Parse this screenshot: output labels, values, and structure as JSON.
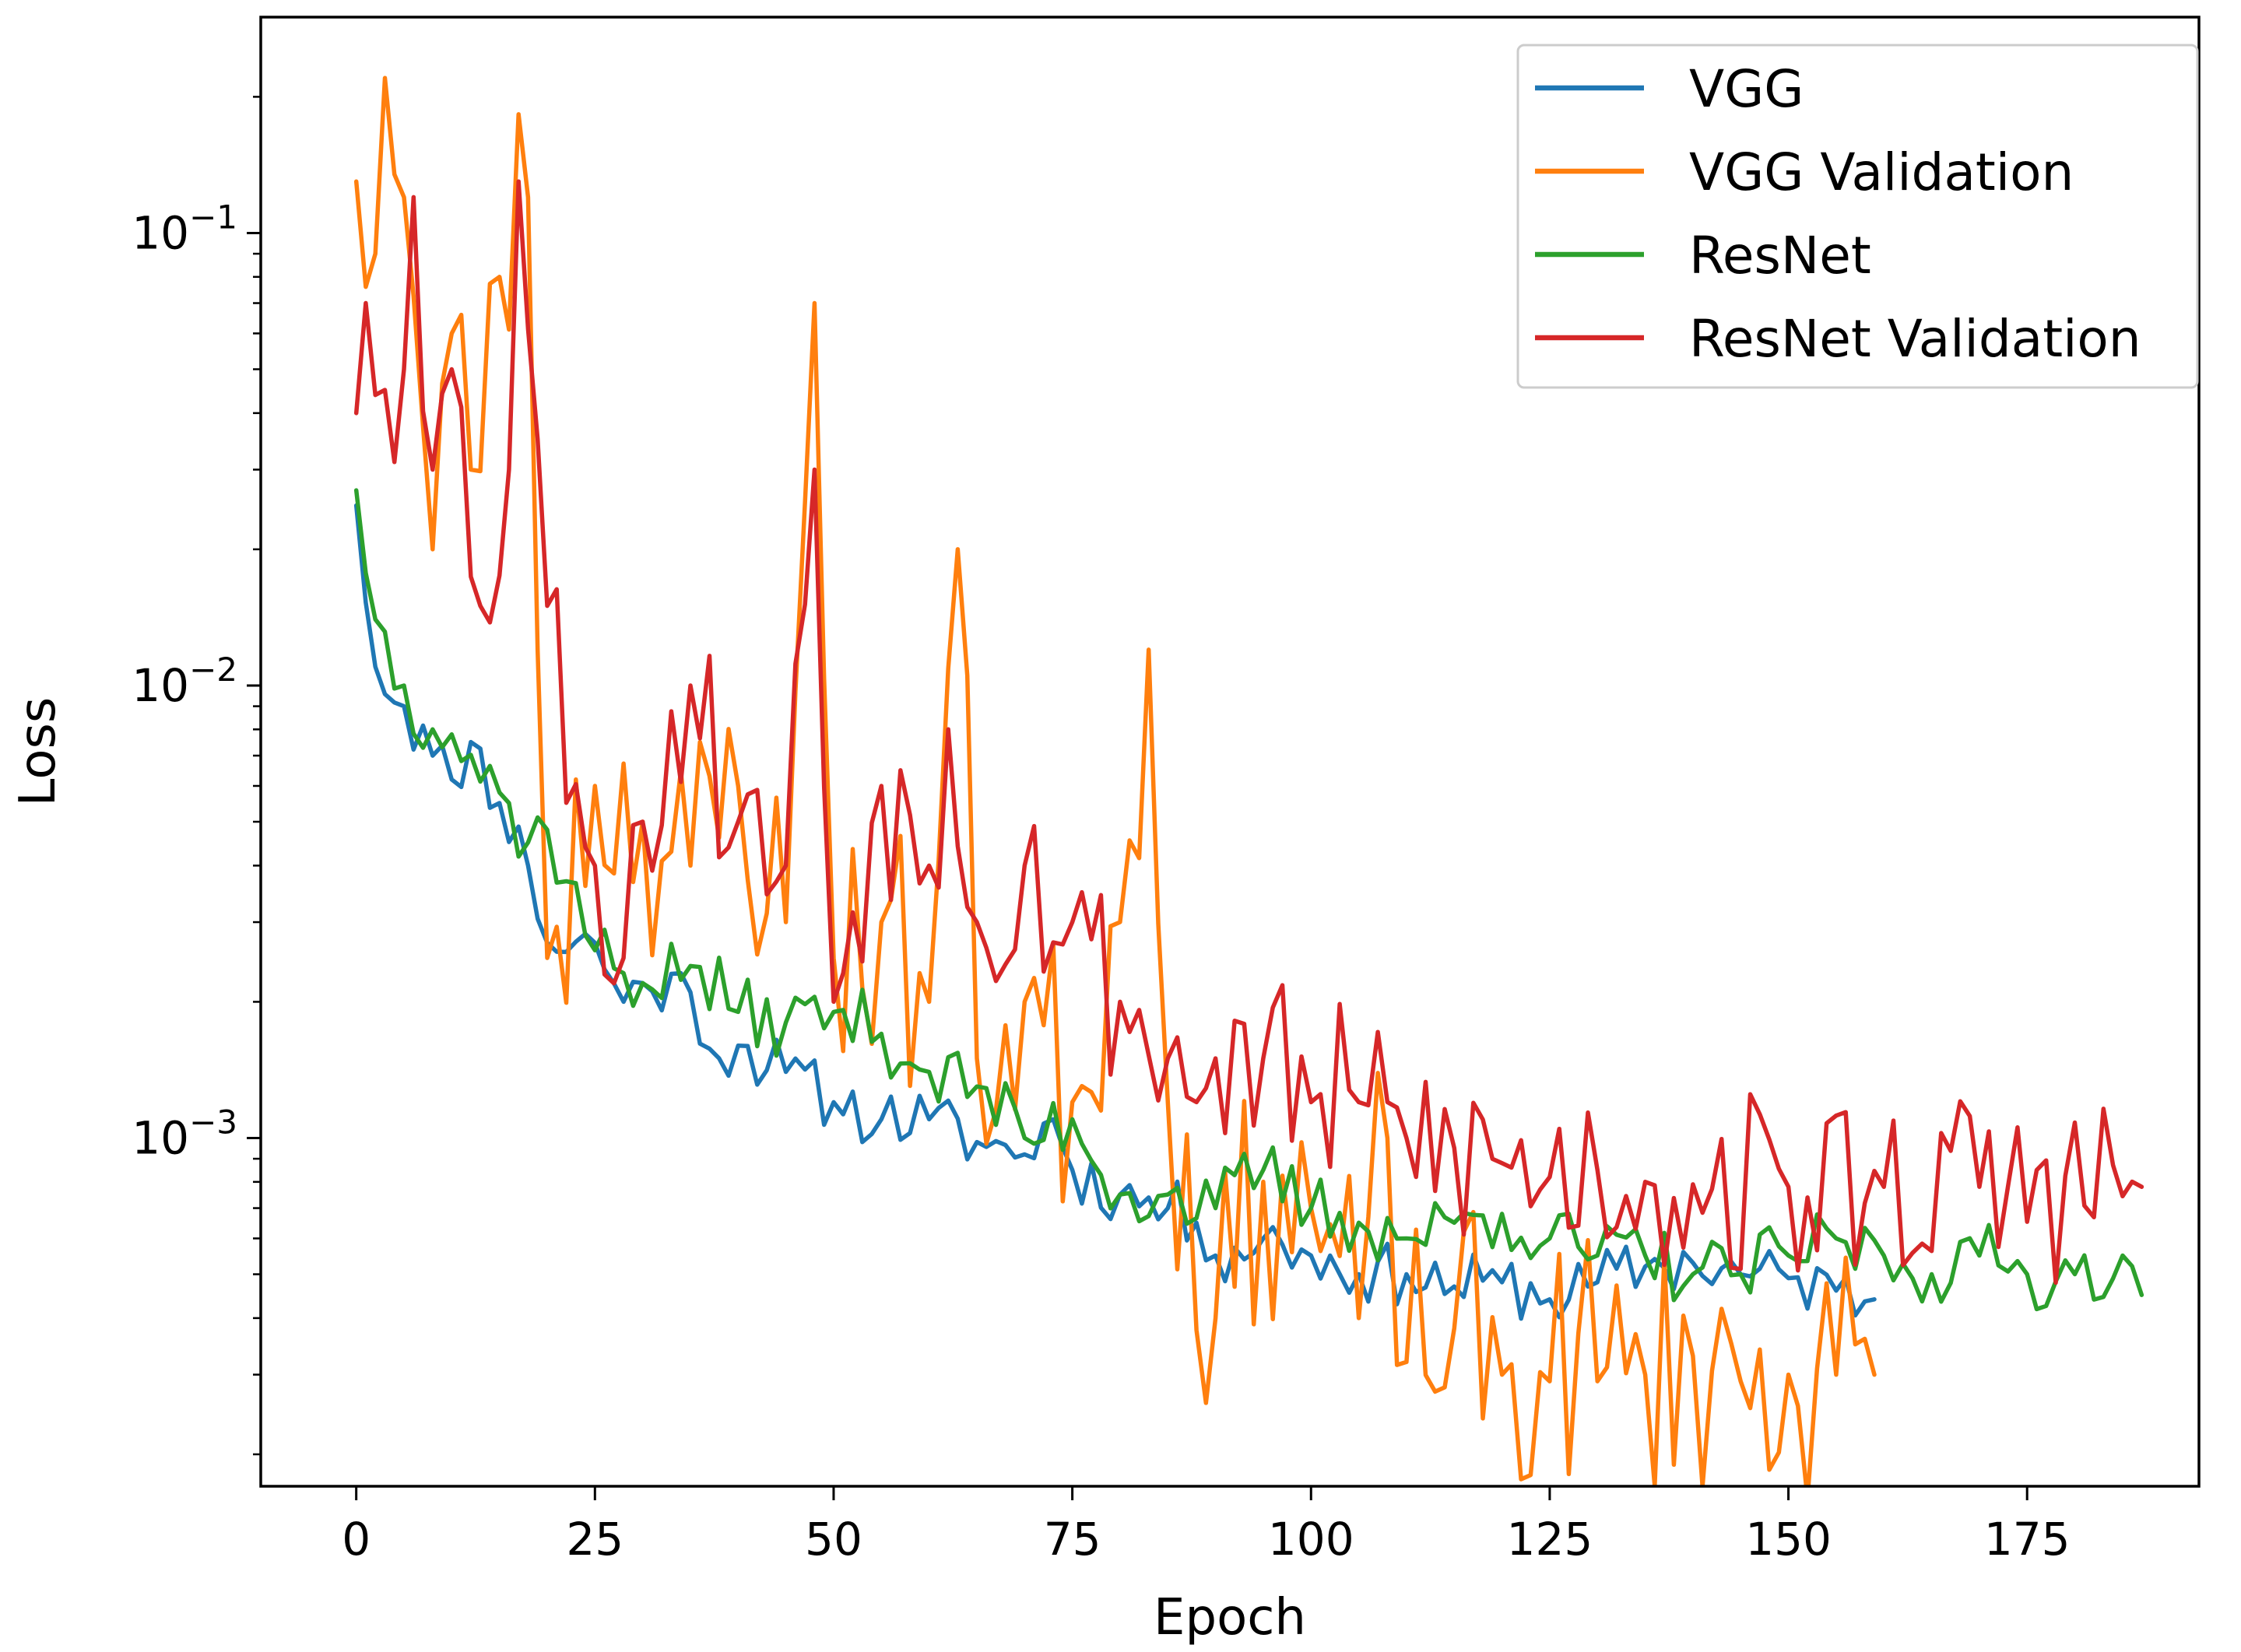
{
  "chart_data": {
    "type": "line",
    "title": "",
    "xlabel": "Epoch",
    "ylabel": "Loss",
    "xscale": "linear",
    "yscale": "log",
    "xlim": [
      -10,
      193
    ],
    "ylim": [
      0.00017,
      0.3
    ],
    "xticks": [
      0,
      25,
      50,
      75,
      100,
      125,
      150,
      175
    ],
    "xtick_labels": [
      "0",
      "25",
      "50",
      "75",
      "100",
      "125",
      "150",
      "175"
    ],
    "yticks": [
      0.001,
      0.01,
      0.1
    ],
    "ytick_labels": [
      {
        "base": "10",
        "exp": "−3"
      },
      {
        "base": "10",
        "exp": "−2"
      },
      {
        "base": "10",
        "exp": "−1"
      }
    ],
    "legend_position": "top-right",
    "series": [
      {
        "name": "VGG",
        "color": "#1f77b4",
        "anchors": [
          [
            0,
            0.025
          ],
          [
            2,
            0.011
          ],
          [
            5,
            0.009
          ],
          [
            8,
            0.007
          ],
          [
            10,
            0.0062
          ],
          [
            12,
            0.0075
          ],
          [
            15,
            0.0055
          ],
          [
            18,
            0.004
          ],
          [
            20,
            0.0027
          ],
          [
            25,
            0.0027
          ],
          [
            28,
            0.002
          ],
          [
            30,
            0.0022
          ],
          [
            35,
            0.0021
          ],
          [
            38,
            0.0015
          ],
          [
            40,
            0.0016
          ],
          [
            45,
            0.0014
          ],
          [
            50,
            0.0012
          ],
          [
            55,
            0.0011
          ],
          [
            60,
            0.0011
          ],
          [
            65,
            0.00098
          ],
          [
            70,
            0.00092
          ],
          [
            73,
            0.0011
          ],
          [
            75,
            0.00085
          ],
          [
            80,
            0.00075
          ],
          [
            85,
            0.0007
          ],
          [
            88,
            0.00065
          ],
          [
            90,
            0.00055
          ],
          [
            95,
            0.0006
          ],
          [
            100,
            0.00055
          ],
          [
            105,
            0.0005
          ],
          [
            110,
            0.0005
          ],
          [
            115,
            0.00047
          ],
          [
            120,
            0.00048
          ],
          [
            125,
            0.00044
          ],
          [
            130,
            0.00048
          ],
          [
            135,
            0.00052
          ],
          [
            140,
            0.00053
          ],
          [
            145,
            0.0005
          ],
          [
            150,
            0.00049
          ],
          [
            155,
            0.00046
          ],
          [
            159,
            0.00044
          ]
        ],
        "noise": 0.07,
        "seed": 11
      },
      {
        "name": "VGG Validation",
        "color": "#ff7f0e",
        "anchors": [
          [
            0,
            0.13
          ],
          [
            2,
            0.09
          ],
          [
            3,
            0.22
          ],
          [
            5,
            0.12
          ],
          [
            8,
            0.02
          ],
          [
            10,
            0.06
          ],
          [
            12,
            0.03
          ],
          [
            15,
            0.08
          ],
          [
            18,
            0.12
          ],
          [
            20,
            0.0025
          ],
          [
            25,
            0.006
          ],
          [
            30,
            0.005
          ],
          [
            35,
            0.004
          ],
          [
            40,
            0.006
          ],
          [
            45,
            0.003
          ],
          [
            48,
            0.07
          ],
          [
            50,
            0.0025
          ],
          [
            55,
            0.003
          ],
          [
            60,
            0.002
          ],
          [
            63,
            0.02
          ],
          [
            65,
            0.0015
          ],
          [
            70,
            0.002
          ],
          [
            75,
            0.0012
          ],
          [
            80,
            0.003
          ],
          [
            83,
            0.012
          ],
          [
            85,
            0.0012
          ],
          [
            90,
            0.0004
          ],
          [
            95,
            0.0008
          ],
          [
            100,
            0.0007
          ],
          [
            105,
            0.0004
          ],
          [
            108,
            0.001
          ],
          [
            110,
            0.00032
          ],
          [
            115,
            0.00038
          ],
          [
            120,
            0.0003
          ],
          [
            125,
            0.00029
          ],
          [
            128,
            0.00037
          ],
          [
            130,
            0.00029
          ],
          [
            135,
            0.0003
          ],
          [
            140,
            0.00033
          ],
          [
            145,
            0.00029
          ],
          [
            150,
            0.0003
          ],
          [
            155,
            0.0003
          ],
          [
            159,
            0.0003
          ]
        ],
        "noise": 0.3,
        "seed": 23
      },
      {
        "name": "ResNet",
        "color": "#2ca02c",
        "anchors": [
          [
            0,
            0.027
          ],
          [
            2,
            0.014
          ],
          [
            5,
            0.01
          ],
          [
            8,
            0.008
          ],
          [
            10,
            0.0078
          ],
          [
            15,
            0.0058
          ],
          [
            18,
            0.0045
          ],
          [
            20,
            0.0048
          ],
          [
            25,
            0.0026
          ],
          [
            30,
            0.0022
          ],
          [
            35,
            0.0024
          ],
          [
            40,
            0.0019
          ],
          [
            45,
            0.0018
          ],
          [
            50,
            0.0019
          ],
          [
            55,
            0.0017
          ],
          [
            60,
            0.0014
          ],
          [
            65,
            0.0013
          ],
          [
            70,
            0.001
          ],
          [
            75,
            0.0011
          ],
          [
            80,
            0.00075
          ],
          [
            85,
            0.00075
          ],
          [
            90,
            0.0007
          ],
          [
            95,
            0.00085
          ],
          [
            100,
            0.0007
          ],
          [
            105,
            0.00065
          ],
          [
            110,
            0.0006
          ],
          [
            115,
            0.00065
          ],
          [
            120,
            0.00068
          ],
          [
            125,
            0.0006
          ],
          [
            130,
            0.00055
          ],
          [
            135,
            0.00055
          ],
          [
            140,
            0.0005
          ],
          [
            145,
            0.0005
          ],
          [
            150,
            0.00055
          ],
          [
            155,
            0.0006
          ],
          [
            160,
            0.00055
          ],
          [
            165,
            0.0005
          ],
          [
            170,
            0.00055
          ],
          [
            175,
            0.0005
          ],
          [
            180,
            0.0005
          ],
          [
            185,
            0.00055
          ],
          [
            187,
            0.00045
          ]
        ],
        "noise": 0.08,
        "seed": 37
      },
      {
        "name": "ResNet Validation",
        "color": "#d62728",
        "anchors": [
          [
            0,
            0.04
          ],
          [
            1,
            0.07
          ],
          [
            3,
            0.045
          ],
          [
            5,
            0.05
          ],
          [
            6,
            0.12
          ],
          [
            8,
            0.03
          ],
          [
            10,
            0.05
          ],
          [
            13,
            0.015
          ],
          [
            16,
            0.03
          ],
          [
            17,
            0.13
          ],
          [
            20,
            0.015
          ],
          [
            25,
            0.004
          ],
          [
            28,
            0.0025
          ],
          [
            30,
            0.005
          ],
          [
            35,
            0.01
          ],
          [
            40,
            0.005
          ],
          [
            45,
            0.004
          ],
          [
            48,
            0.03
          ],
          [
            50,
            0.002
          ],
          [
            55,
            0.006
          ],
          [
            60,
            0.004
          ],
          [
            62,
            0.008
          ],
          [
            65,
            0.003
          ],
          [
            70,
            0.004
          ],
          [
            75,
            0.003
          ],
          [
            80,
            0.002
          ],
          [
            85,
            0.0015
          ],
          [
            88,
            0.0012
          ],
          [
            90,
            0.0015
          ],
          [
            95,
            0.0015
          ],
          [
            100,
            0.0012
          ],
          [
            105,
            0.0012
          ],
          [
            110,
            0.001
          ],
          [
            115,
            0.00095
          ],
          [
            120,
            0.00088
          ],
          [
            125,
            0.00082
          ],
          [
            130,
            0.00085
          ],
          [
            135,
            0.0008
          ],
          [
            140,
            0.00079
          ],
          [
            150,
            0.00078
          ],
          [
            160,
            0.00078
          ],
          [
            170,
            0.00078
          ],
          [
            187,
            0.00078
          ]
        ],
        "noise": 0.22,
        "seed": 53
      }
    ]
  }
}
